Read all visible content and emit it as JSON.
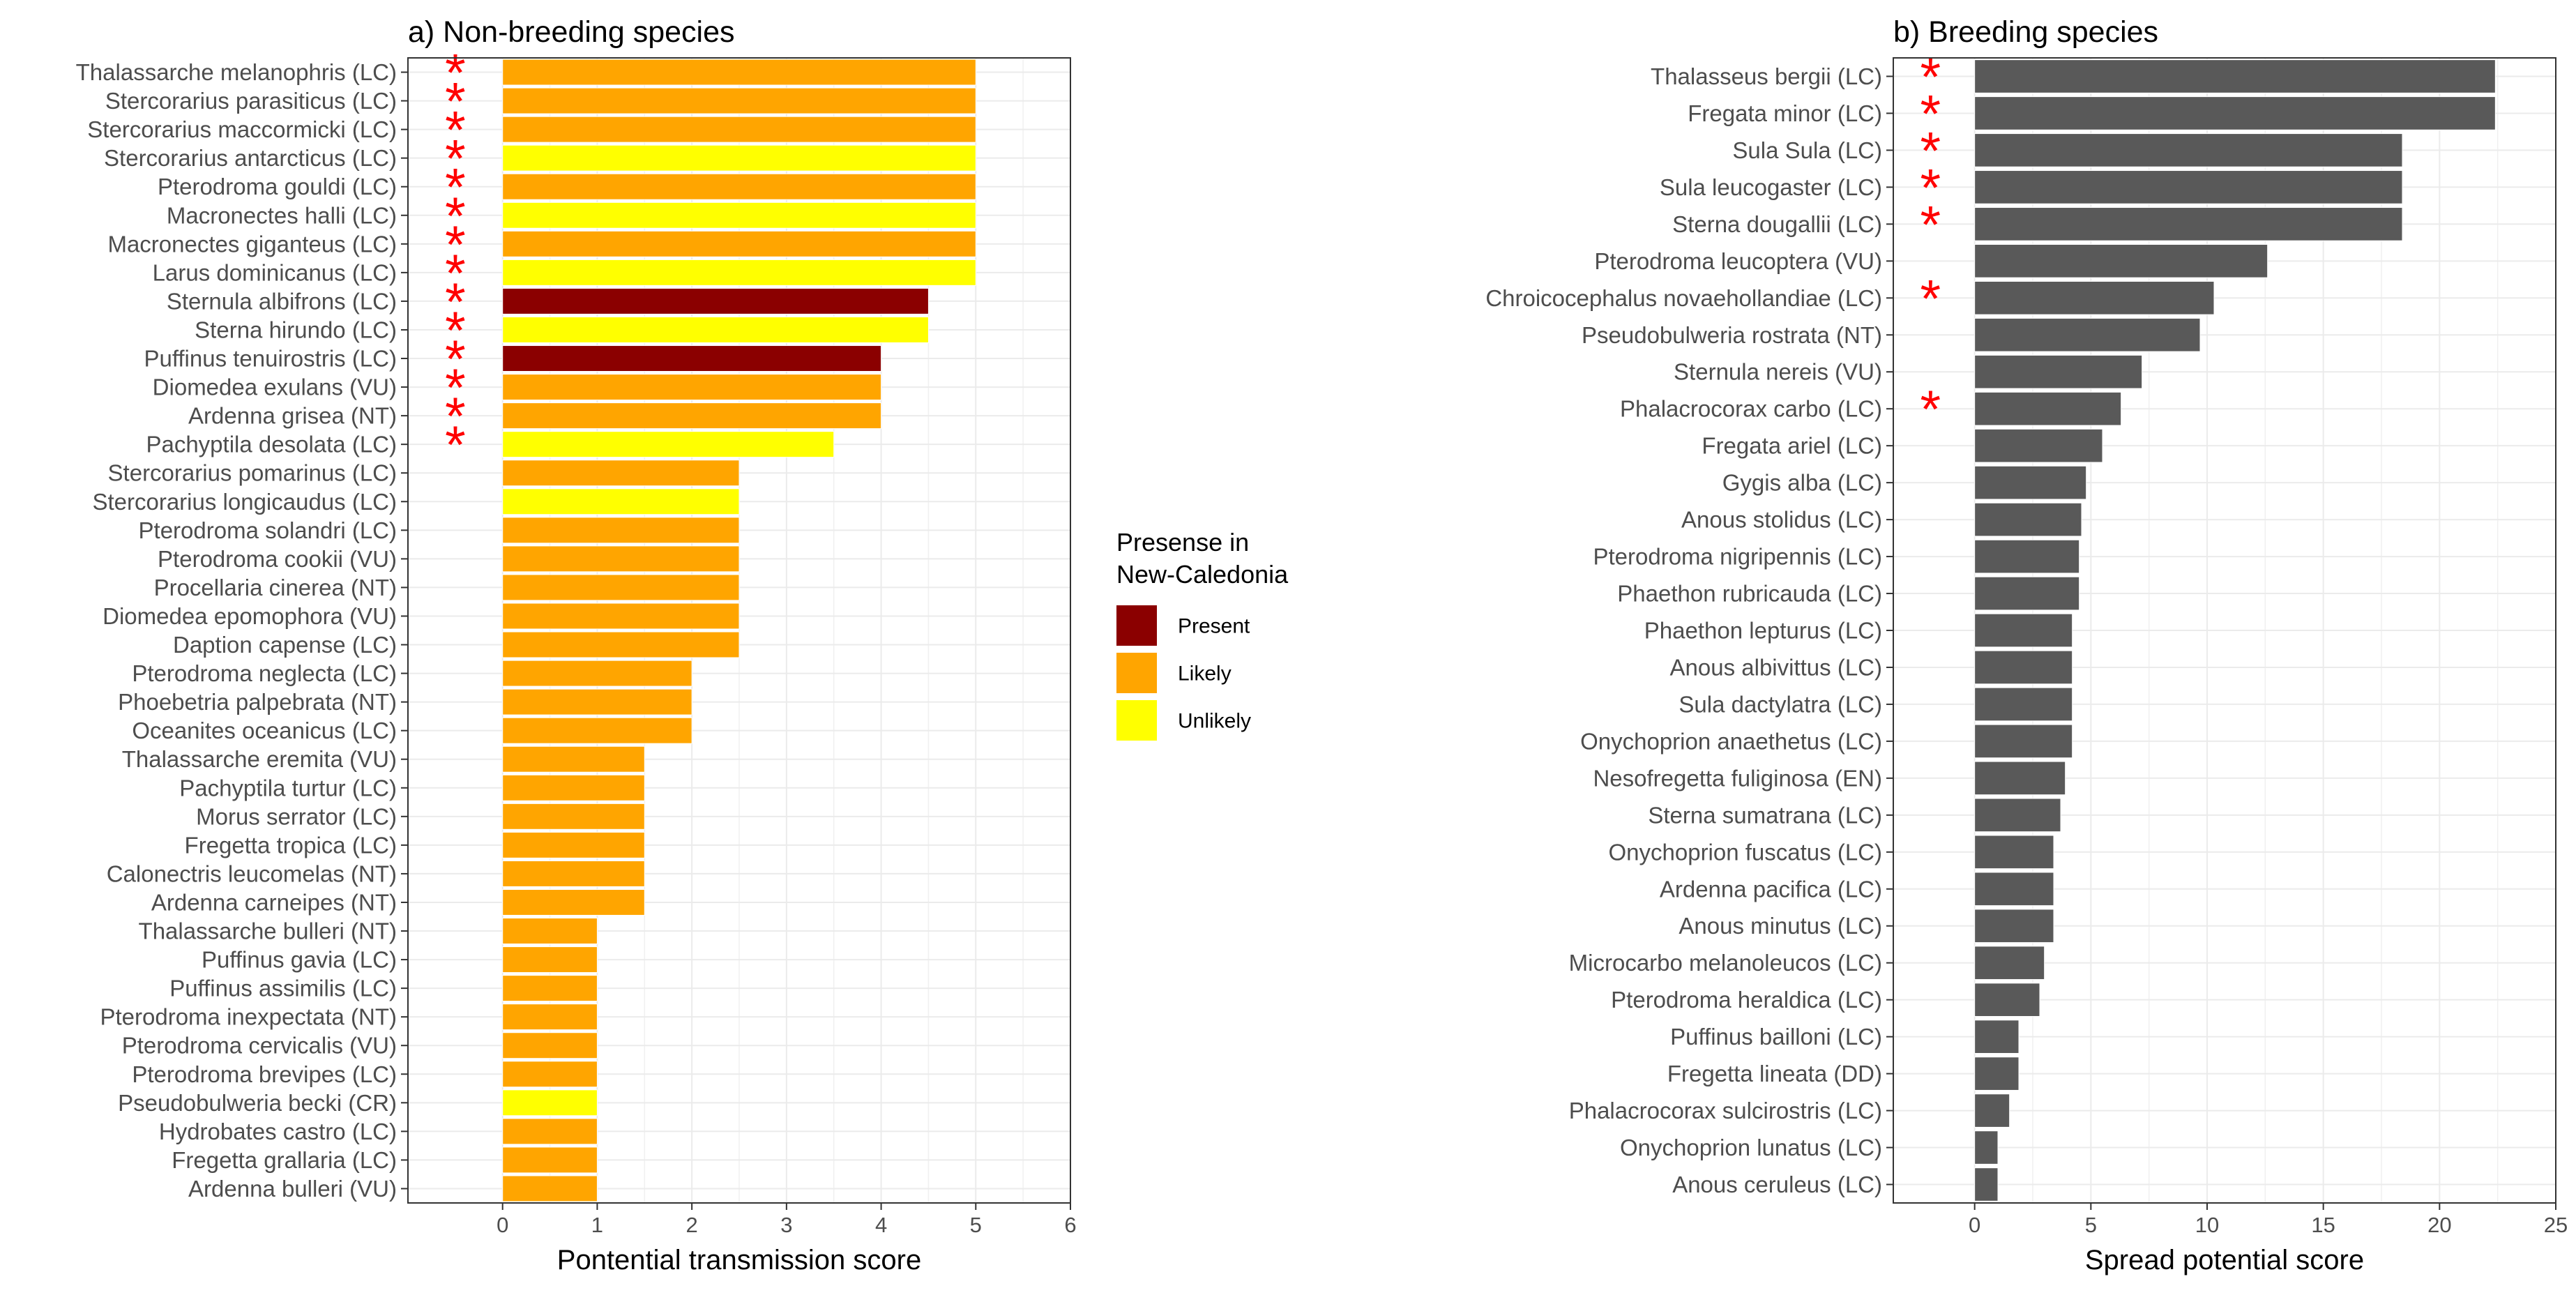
{
  "chart_data": [
    {
      "type": "bar",
      "orientation": "horizontal",
      "title": "a) Non-breeding species",
      "xlabel": "Pontential transmission score",
      "ylabel": "",
      "xlim": [
        -1,
        6
      ],
      "xticks": [
        0,
        1,
        2,
        3,
        4,
        5,
        6
      ],
      "grid": true,
      "legend": {
        "title_lines": [
          "Presense in",
          "New-Caledonia"
        ],
        "placement": "right",
        "entries": [
          {
            "label": "Present",
            "color": "#8B0000"
          },
          {
            "label": "Likely",
            "color": "#FFA500"
          },
          {
            "label": "Unlikely",
            "color": "#FFFF00"
          }
        ]
      },
      "marker_symbol": "*",
      "marker_color": "#FF0000",
      "categories": [
        "Thalassarche melanophris (LC)",
        "Stercorarius parasiticus (LC)",
        "Stercorarius maccormicki (LC)",
        "Stercorarius antarcticus (LC)",
        "Pterodroma gouldi (LC)",
        "Macronectes halli (LC)",
        "Macronectes giganteus (LC)",
        "Larus dominicanus (LC)",
        "Sternula albifrons (LC)",
        "Sterna hirundo (LC)",
        "Puffinus tenuirostris (LC)",
        "Diomedea exulans (VU)",
        "Ardenna grisea (NT)",
        "Pachyptila desolata (LC)",
        "Stercorarius pomarinus (LC)",
        "Stercorarius longicaudus (LC)",
        "Pterodroma solandri (LC)",
        "Pterodroma cookii (VU)",
        "Procellaria cinerea (NT)",
        "Diomedea epomophora (VU)",
        "Daption capense (LC)",
        "Pterodroma neglecta (LC)",
        "Phoebetria palpebrata (NT)",
        "Oceanites oceanicus (LC)",
        "Thalassarche eremita (VU)",
        "Pachyptila turtur (LC)",
        "Morus serrator (LC)",
        "Fregetta tropica (LC)",
        "Calonectris leucomelas (NT)",
        "Ardenna carneipes (NT)",
        "Thalassarche bulleri (NT)",
        "Puffinus gavia (LC)",
        "Puffinus assimilis (LC)",
        "Pterodroma inexpectata (NT)",
        "Pterodroma cervicalis (VU)",
        "Pterodroma brevipes (LC)",
        "Pseudobulweria becki (CR)",
        "Hydrobates castro (LC)",
        "Fregetta grallaria (LC)",
        "Ardenna bulleri (VU)"
      ],
      "values": [
        5,
        5,
        5,
        5,
        5,
        5,
        5,
        5,
        4.5,
        4.5,
        4,
        4,
        4,
        3.5,
        2.5,
        2.5,
        2.5,
        2.5,
        2.5,
        2.5,
        2.5,
        2,
        2,
        2,
        1.5,
        1.5,
        1.5,
        1.5,
        1.5,
        1.5,
        1,
        1,
        1,
        1,
        1,
        1,
        1,
        1,
        1,
        1
      ],
      "presence": [
        "Likely",
        "Likely",
        "Likely",
        "Unlikely",
        "Likely",
        "Unlikely",
        "Likely",
        "Unlikely",
        "Present",
        "Unlikely",
        "Present",
        "Likely",
        "Likely",
        "Unlikely",
        "Likely",
        "Unlikely",
        "Likely",
        "Likely",
        "Likely",
        "Likely",
        "Likely",
        "Likely",
        "Likely",
        "Likely",
        "Likely",
        "Likely",
        "Likely",
        "Likely",
        "Likely",
        "Likely",
        "Likely",
        "Likely",
        "Likely",
        "Likely",
        "Likely",
        "Likely",
        "Unlikely",
        "Likely",
        "Likely",
        "Likely"
      ],
      "starred": [
        true,
        true,
        true,
        true,
        true,
        true,
        true,
        true,
        true,
        true,
        true,
        true,
        true,
        true,
        false,
        false,
        false,
        false,
        false,
        false,
        false,
        false,
        false,
        false,
        false,
        false,
        false,
        false,
        false,
        false,
        false,
        false,
        false,
        false,
        false,
        false,
        false,
        false,
        false,
        false
      ]
    },
    {
      "type": "bar",
      "orientation": "horizontal",
      "title": "b) Breeding species",
      "xlabel": "Spread potential score",
      "ylabel": "",
      "xlim": [
        -3.5,
        25
      ],
      "xticks": [
        0,
        5,
        10,
        15,
        20,
        25
      ],
      "grid": true,
      "bar_color": "#595959",
      "marker_symbol": "*",
      "marker_color": "#FF0000",
      "categories": [
        "Thalasseus bergii (LC)",
        "Fregata minor (LC)",
        "Sula Sula (LC)",
        "Sula leucogaster (LC)",
        "Sterna dougallii (LC)",
        "Pterodroma leucoptera (VU)",
        "Chroicocephalus novaehollandiae (LC)",
        "Pseudobulweria rostrata (NT)",
        "Sternula nereis (VU)",
        "Phalacrocorax carbo (LC)",
        "Fregata ariel (LC)",
        "Gygis alba (LC)",
        "Anous stolidus (LC)",
        "Pterodroma nigripennis (LC)",
        "Phaethon rubricauda (LC)",
        "Phaethon lepturus (LC)",
        "Anous albivittus (LC)",
        "Sula dactylatra (LC)",
        "Onychoprion anaethetus (LC)",
        "Nesofregetta fuliginosa (EN)",
        "Sterna sumatrana (LC)",
        "Onychoprion fuscatus (LC)",
        "Ardenna pacifica (LC)",
        "Anous minutus (LC)",
        "Microcarbo melanoleucos (LC)",
        "Pterodroma heraldica (LC)",
        "Puffinus bailloni (LC)",
        "Fregetta lineata (DD)",
        "Phalacrocorax sulcirostris (LC)",
        "Onychoprion lunatus (LC)",
        "Anous ceruleus (LC)"
      ],
      "values": [
        22.4,
        22.4,
        18.4,
        18.4,
        18.4,
        12.6,
        10.3,
        9.7,
        7.2,
        6.3,
        5.5,
        4.8,
        4.6,
        4.5,
        4.5,
        4.2,
        4.2,
        4.2,
        4.2,
        3.9,
        3.7,
        3.4,
        3.4,
        3.4,
        3,
        2.8,
        1.9,
        1.9,
        1.5,
        1,
        1
      ],
      "starred": [
        true,
        true,
        true,
        true,
        true,
        false,
        true,
        false,
        false,
        true,
        false,
        false,
        false,
        false,
        false,
        false,
        false,
        false,
        false,
        false,
        false,
        false,
        false,
        false,
        false,
        false,
        false,
        false,
        false,
        false,
        false
      ]
    }
  ]
}
